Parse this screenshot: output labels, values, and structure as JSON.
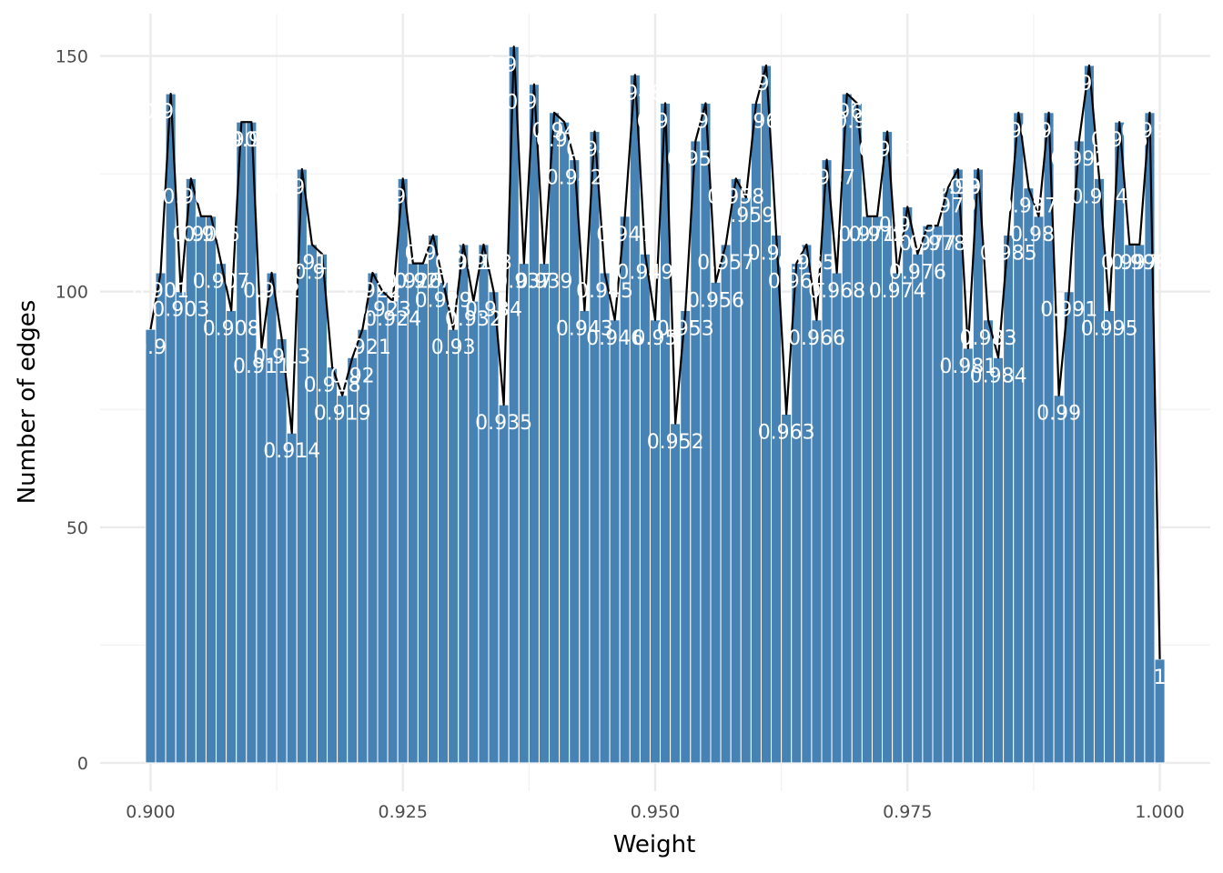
{
  "chart_data": {
    "type": "bar",
    "xlabel": "Weight",
    "ylabel": "Number of edges",
    "xlim": [
      0.895,
      1.005
    ],
    "ylim": [
      -6,
      159
    ],
    "x_ticks": [
      0.9,
      0.925,
      0.95,
      0.975,
      1.0
    ],
    "x_tick_labels": [
      "0.900",
      "0.925",
      "0.950",
      "0.975",
      "1.000"
    ],
    "y_ticks": [
      0,
      50,
      100,
      150
    ],
    "y_tick_labels": [
      "0",
      "50",
      "100",
      "150"
    ],
    "grid": true,
    "bar_color": "#4682B4",
    "line_color": "#000000",
    "x": [
      0.9,
      0.901,
      0.902,
      0.903,
      0.904,
      0.905,
      0.906,
      0.907,
      0.908,
      0.909,
      0.91,
      0.911,
      0.912,
      0.913,
      0.914,
      0.915,
      0.916,
      0.917,
      0.918,
      0.919,
      0.92,
      0.921,
      0.922,
      0.923,
      0.924,
      0.925,
      0.926,
      0.927,
      0.928,
      0.929,
      0.93,
      0.931,
      0.932,
      0.933,
      0.934,
      0.935,
      0.936,
      0.937,
      0.938,
      0.939,
      0.94,
      0.941,
      0.942,
      0.943,
      0.944,
      0.945,
      0.946,
      0.947,
      0.948,
      0.949,
      0.95,
      0.951,
      0.952,
      0.953,
      0.954,
      0.955,
      0.956,
      0.957,
      0.958,
      0.959,
      0.96,
      0.961,
      0.962,
      0.963,
      0.964,
      0.965,
      0.966,
      0.967,
      0.968,
      0.969,
      0.97,
      0.971,
      0.972,
      0.973,
      0.974,
      0.975,
      0.976,
      0.977,
      0.978,
      0.979,
      0.98,
      0.981,
      0.982,
      0.983,
      0.984,
      0.985,
      0.986,
      0.987,
      0.988,
      0.989,
      0.99,
      0.991,
      0.992,
      0.993,
      0.994,
      0.995,
      0.996,
      0.997,
      0.998,
      0.999,
      1.0
    ],
    "labels": [
      "0.9",
      "0.901",
      "0.902",
      "0.903",
      "0.904",
      "0.905",
      "0.906",
      "0.907",
      "0.908",
      "0.909",
      "0.91",
      "0.911",
      "0.912",
      "0.913",
      "0.914",
      "0.915",
      "0.916",
      "0.917",
      "0.918",
      "0.919",
      "0.92",
      "0.921",
      "0.922",
      "0.923",
      "0.924",
      "0.925",
      "0.926",
      "0.927",
      "0.928",
      "0.929",
      "0.93",
      "0.931",
      "0.932",
      "0.933",
      "0.934",
      "0.935",
      "0.936",
      "0.937",
      "0.938",
      "0.939",
      "0.94",
      "0.941",
      "0.942",
      "0.943",
      "0.944",
      "0.945",
      "0.946",
      "0.947",
      "0.948",
      "0.949",
      "0.95",
      "0.951",
      "0.952",
      "0.953",
      "0.954",
      "0.955",
      "0.956",
      "0.957",
      "0.958",
      "0.959",
      "0.96",
      "0.961",
      "0.962",
      "0.963",
      "0.964",
      "0.965",
      "0.966",
      "0.967",
      "0.968",
      "0.969",
      "0.97",
      "0.971",
      "0.972",
      "0.973",
      "0.974",
      "0.975",
      "0.976",
      "0.977",
      "0.978",
      "0.979",
      "0.98",
      "0.981",
      "0.982",
      "0.983",
      "0.984",
      "0.985",
      "0.986",
      "0.987",
      "0.988",
      "0.989",
      "0.99",
      "0.991",
      "0.992",
      "0.993",
      "0.994",
      "0.995",
      "0.996",
      "0.997",
      "0.998",
      "0.999",
      "1"
    ],
    "values": [
      92,
      104,
      142,
      100,
      124,
      116,
      116,
      106,
      96,
      136,
      136,
      88,
      104,
      90,
      70,
      126,
      110,
      108,
      84,
      78,
      86,
      92,
      104,
      100,
      98,
      124,
      106,
      106,
      112,
      102,
      92,
      110,
      98,
      110,
      100,
      76,
      152,
      106,
      144,
      106,
      138,
      136,
      128,
      96,
      134,
      104,
      94,
      116,
      146,
      108,
      94,
      140,
      72,
      96,
      132,
      140,
      102,
      110,
      124,
      120,
      140,
      148,
      112,
      74,
      106,
      110,
      94,
      128,
      104,
      142,
      140,
      116,
      116,
      134,
      104,
      118,
      108,
      114,
      114,
      122,
      126,
      88,
      126,
      94,
      86,
      112,
      138,
      122,
      116,
      138,
      78,
      100,
      132,
      148,
      124,
      96,
      136,
      110,
      110,
      138,
      22
    ]
  }
}
